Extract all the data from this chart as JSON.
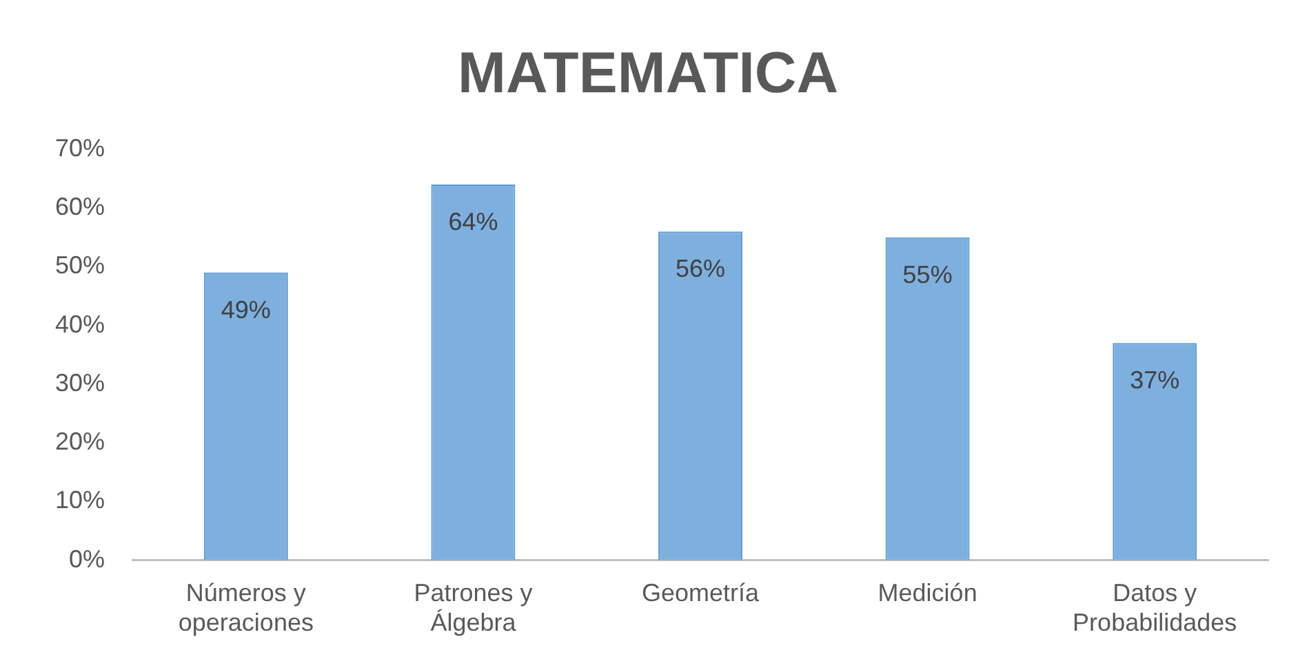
{
  "chart_data": {
    "type": "bar",
    "title": "MATEMATICA",
    "categories": [
      "Números y operaciones",
      "Patrones y Álgebra",
      "Geometría",
      "Medición",
      "Datos y Probabilidades"
    ],
    "values": [
      49,
      64,
      56,
      55,
      37
    ],
    "value_labels": [
      "49%",
      "64%",
      "56%",
      "55%",
      "37%"
    ],
    "color": "#7eb0df",
    "ylim": [
      0,
      70
    ],
    "yticks": [
      {
        "value": 0,
        "label": "0%"
      },
      {
        "value": 10,
        "label": "10%"
      },
      {
        "value": 20,
        "label": "20%"
      },
      {
        "value": 30,
        "label": "30%"
      },
      {
        "value": 40,
        "label": "40%"
      },
      {
        "value": 50,
        "label": "50%"
      },
      {
        "value": 60,
        "label": "60%"
      },
      {
        "value": 70,
        "label": "70%"
      }
    ],
    "grid": false,
    "legend": false
  }
}
